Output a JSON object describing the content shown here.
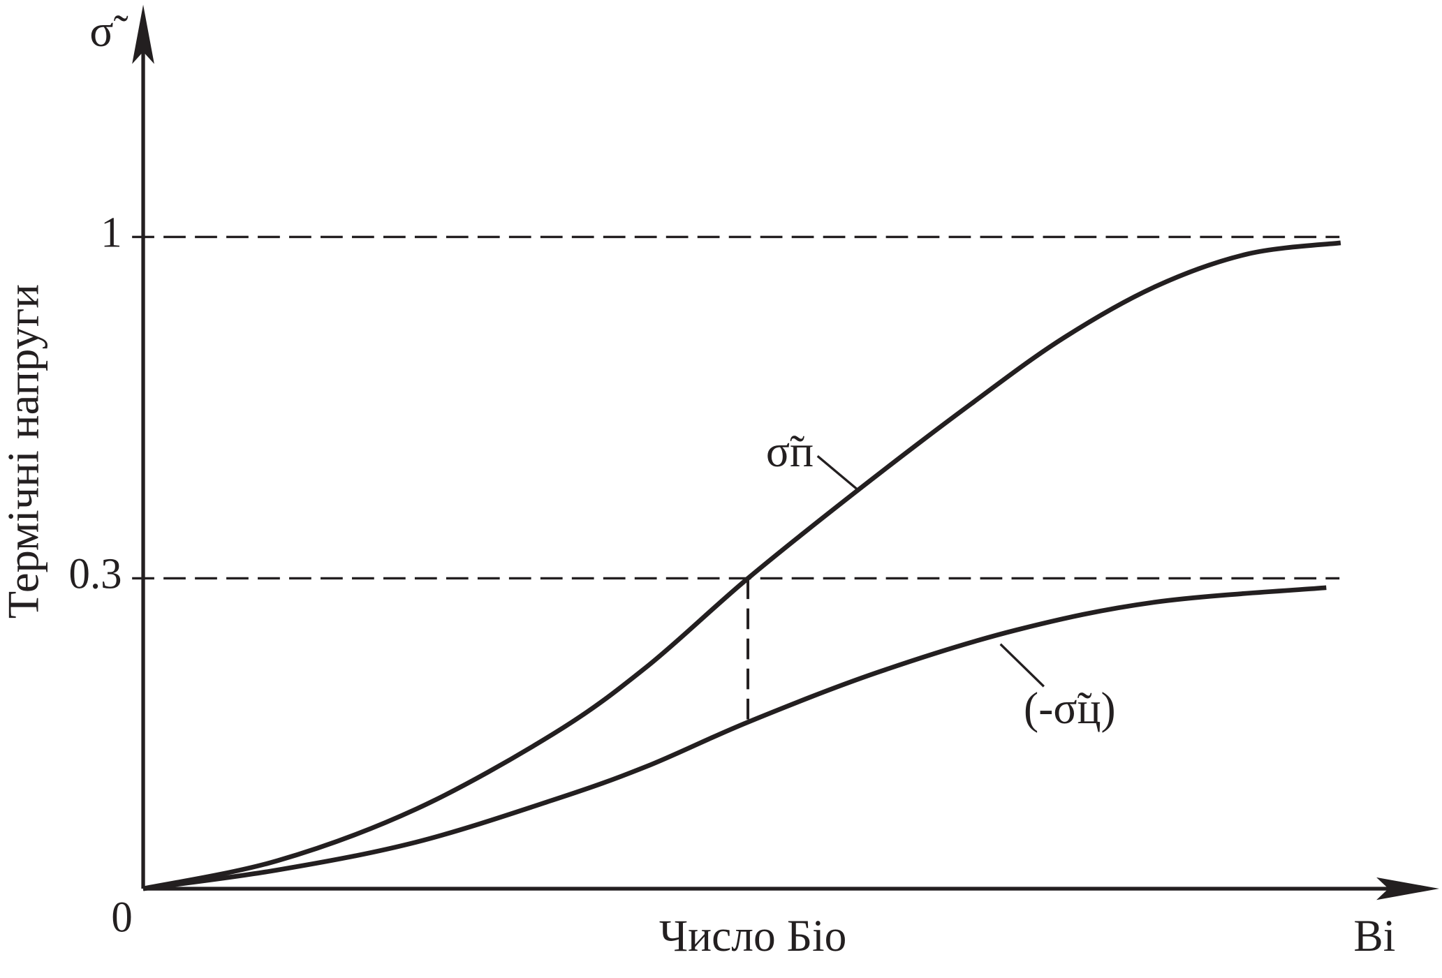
{
  "chart_data": {
    "type": "line",
    "y_symbol": "σ̃",
    "ylabel": "Термічні напруги",
    "xlabel": "Число Біо",
    "x_symbol": "Bi",
    "xlim": [
      0,
      1.08
    ],
    "ylim": [
      0,
      1.45
    ],
    "yticks": [
      0,
      0.3,
      1
    ],
    "grid": true,
    "series": [
      {
        "name": "σ̃п",
        "color": "#231f20",
        "x": [
          0,
          0.112,
          0.228,
          0.343,
          0.42,
          0.505,
          0.598,
          0.691,
          0.768,
          0.845,
          0.922,
          1.0
        ],
        "values": [
          0,
          0.027,
          0.077,
          0.15,
          0.214,
          0.3,
          0.483,
          0.657,
          0.792,
          0.898,
          0.965,
          0.988
        ]
      },
      {
        "name": "(-σ̃ц)",
        "color": "#231f20",
        "x": [
          0,
          0.112,
          0.228,
          0.343,
          0.42,
          0.505,
          0.613,
          0.729,
          0.845,
          0.988
        ],
        "values": [
          0,
          0.018,
          0.045,
          0.086,
          0.118,
          0.161,
          0.209,
          0.25,
          0.277,
          0.291
        ]
      }
    ]
  }
}
